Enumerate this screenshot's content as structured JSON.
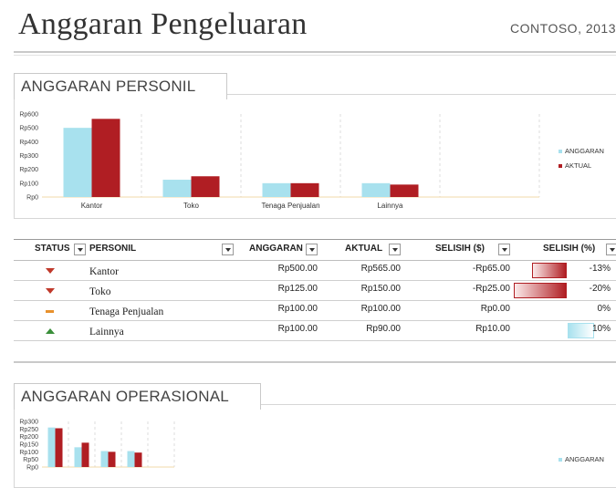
{
  "header": {
    "title": "Anggaran Pengeluaran",
    "company": "CONTOSO, 2013"
  },
  "personnel_chart": {
    "tab_label": "ANGGARAN PERSONIL",
    "y_ticks": [
      "Rp600",
      "Rp500",
      "Rp400",
      "Rp300",
      "Rp200",
      "Rp100",
      "Rp0"
    ],
    "legend": [
      "ANGGARAN",
      "AKTUAL"
    ],
    "colors": {
      "budget": "#a8e1ee",
      "actual": "#b01e23"
    }
  },
  "chart_data": [
    {
      "type": "bar",
      "title": "",
      "categories": [
        "Kantor",
        "Toko",
        "Tenaga Penjualan",
        "Lainnya"
      ],
      "series": [
        {
          "name": "ANGGARAN",
          "values": [
            500,
            125,
            100,
            100
          ]
        },
        {
          "name": "AKTUAL",
          "values": [
            565,
            150,
            100,
            90
          ]
        }
      ],
      "ylim": [
        0,
        600
      ],
      "legend": "right",
      "grid": true
    },
    {
      "type": "bar",
      "title": "",
      "categories": [
        "",
        "",
        "",
        ""
      ],
      "series": [
        {
          "name": "ANGGARAN",
          "values": [
            260,
            130,
            105,
            105
          ]
        },
        {
          "name": "AKTUAL",
          "values": [
            255,
            160,
            100,
            95
          ]
        }
      ],
      "ylim": [
        0,
        300
      ],
      "legend": "right",
      "grid": true
    }
  ],
  "table": {
    "headers": {
      "status": "STATUS",
      "personil": "PERSONIL",
      "anggaran": "ANGGARAN",
      "aktual": "AKTUAL",
      "selisih": "SELISIH ($)",
      "selisih_pct": "SELISIH (%)"
    },
    "rows": [
      {
        "status": "down",
        "name": "Kantor",
        "anggaran": "Rp500.00",
        "aktual": "Rp565.00",
        "selisih": "-Rp65.00",
        "pct": "-13%"
      },
      {
        "status": "down",
        "name": "Toko",
        "anggaran": "Rp125.00",
        "aktual": "Rp150.00",
        "selisih": "-Rp25.00",
        "pct": "-20%"
      },
      {
        "status": "flat",
        "name": "Tenaga Penjualan",
        "anggaran": "Rp100.00",
        "aktual": "Rp100.00",
        "selisih": "Rp0.00",
        "pct": "0%"
      },
      {
        "status": "up",
        "name": "Lainnya",
        "anggaran": "Rp100.00",
        "aktual": "Rp90.00",
        "selisih": "Rp10.00",
        "pct": "10%"
      }
    ],
    "databars": {
      "selisih": [
        -65,
        -25,
        0,
        10
      ],
      "pct": [
        -13,
        -20,
        0,
        10
      ]
    }
  },
  "operational_chart": {
    "tab_label": "ANGGARAN OPERASIONAL",
    "y_ticks": [
      "Rp300",
      "Rp250",
      "Rp200",
      "Rp150",
      "Rp100",
      "Rp50",
      "Rp0"
    ],
    "legend": [
      "ANGGARAN"
    ]
  }
}
